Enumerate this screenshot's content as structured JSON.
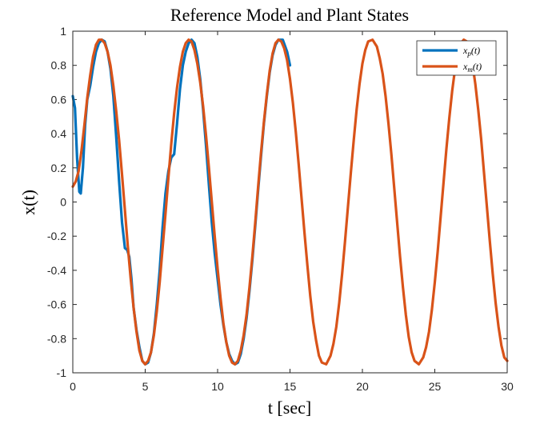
{
  "chart_data": {
    "type": "line",
    "title": "Reference Model and Plant States",
    "xlabel": "t [sec]",
    "ylabel": "x(t)",
    "xlim": [
      0,
      30
    ],
    "ylim": [
      -1,
      1
    ],
    "xticks": [
      0,
      5,
      10,
      15,
      20,
      25,
      30
    ],
    "yticks": [
      -1,
      -0.8,
      -0.6,
      -0.4,
      -0.2,
      0,
      0.2,
      0.4,
      0.6,
      0.8,
      1
    ],
    "xtick_labels": [
      "0",
      "5",
      "10",
      "15",
      "20",
      "25",
      "30"
    ],
    "ytick_labels": [
      "-1",
      "-0.8",
      "-0.6",
      "-0.4",
      "-0.2",
      "0",
      "0.2",
      "0.4",
      "0.6",
      "0.8",
      "1"
    ],
    "grid": false,
    "legend_position": "top-right",
    "series": [
      {
        "name": "x_p(t)",
        "legend_label": "xp(t)",
        "color": "#0072BD",
        "points": [
          [
            0,
            0.62
          ],
          [
            0.15,
            0.55
          ],
          [
            0.3,
            0.25
          ],
          [
            0.45,
            0.06
          ],
          [
            0.55,
            0.05
          ],
          [
            0.7,
            0.2
          ],
          [
            0.85,
            0.45
          ],
          [
            1.0,
            0.6
          ],
          [
            1.2,
            0.68
          ],
          [
            1.4,
            0.79
          ],
          [
            1.6,
            0.88
          ],
          [
            1.8,
            0.93
          ],
          [
            2.0,
            0.95
          ],
          [
            2.2,
            0.94
          ],
          [
            2.4,
            0.88
          ],
          [
            2.6,
            0.78
          ],
          [
            2.8,
            0.62
          ],
          [
            3.0,
            0.38
          ],
          [
            3.2,
            0.12
          ],
          [
            3.4,
            -0.12
          ],
          [
            3.6,
            -0.27
          ],
          [
            3.75,
            -0.28
          ],
          [
            3.9,
            -0.32
          ],
          [
            4.05,
            -0.45
          ],
          [
            4.2,
            -0.62
          ],
          [
            4.4,
            -0.75
          ],
          [
            4.6,
            -0.85
          ],
          [
            4.8,
            -0.93
          ],
          [
            5.0,
            -0.95
          ],
          [
            5.2,
            -0.94
          ],
          [
            5.4,
            -0.88
          ],
          [
            5.6,
            -0.77
          ],
          [
            5.8,
            -0.6
          ],
          [
            6.0,
            -0.4
          ],
          [
            6.2,
            -0.15
          ],
          [
            6.4,
            0.05
          ],
          [
            6.6,
            0.18
          ],
          [
            6.8,
            0.26
          ],
          [
            7.0,
            0.28
          ],
          [
            7.2,
            0.46
          ],
          [
            7.4,
            0.66
          ],
          [
            7.6,
            0.8
          ],
          [
            7.8,
            0.88
          ],
          [
            8.0,
            0.93
          ],
          [
            8.2,
            0.95
          ],
          [
            8.4,
            0.93
          ],
          [
            8.6,
            0.85
          ],
          [
            8.8,
            0.72
          ],
          [
            9.0,
            0.54
          ],
          [
            9.2,
            0.33
          ],
          [
            9.4,
            0.1
          ],
          [
            9.6,
            -0.12
          ],
          [
            9.8,
            -0.3
          ],
          [
            10.0,
            -0.45
          ],
          [
            10.2,
            -0.6
          ],
          [
            10.4,
            -0.72
          ],
          [
            10.6,
            -0.82
          ],
          [
            10.8,
            -0.89
          ],
          [
            11.0,
            -0.93
          ],
          [
            11.2,
            -0.95
          ],
          [
            11.4,
            -0.94
          ],
          [
            11.6,
            -0.89
          ],
          [
            11.8,
            -0.8
          ],
          [
            12.0,
            -0.68
          ],
          [
            12.2,
            -0.52
          ],
          [
            12.4,
            -0.34
          ],
          [
            12.6,
            -0.14
          ],
          [
            12.8,
            0.07
          ],
          [
            13.0,
            0.27
          ],
          [
            13.2,
            0.46
          ],
          [
            13.4,
            0.62
          ],
          [
            13.6,
            0.76
          ],
          [
            13.8,
            0.86
          ],
          [
            14.0,
            0.92
          ],
          [
            14.2,
            0.95
          ],
          [
            14.5,
            0.95
          ],
          [
            14.8,
            0.88
          ],
          [
            15.0,
            0.8
          ]
        ]
      },
      {
        "name": "x_m(t)",
        "legend_label": "xm(t)",
        "color": "#D95319",
        "amplitude": 0.95,
        "period": 6.3,
        "peak_time": 2.0,
        "points": [
          [
            0,
            0.09
          ],
          [
            0.2,
            0.12
          ],
          [
            0.4,
            0.18
          ],
          [
            0.6,
            0.3
          ],
          [
            0.8,
            0.45
          ],
          [
            1.0,
            0.61
          ],
          [
            1.2,
            0.74
          ],
          [
            1.4,
            0.85
          ],
          [
            1.6,
            0.92
          ],
          [
            1.8,
            0.95
          ],
          [
            2.0,
            0.95
          ],
          [
            2.2,
            0.93
          ],
          [
            2.4,
            0.88
          ],
          [
            2.6,
            0.8
          ],
          [
            2.8,
            0.68
          ],
          [
            3.0,
            0.53
          ],
          [
            3.2,
            0.36
          ],
          [
            3.4,
            0.16
          ],
          [
            3.6,
            -0.05
          ],
          [
            3.8,
            -0.26
          ],
          [
            4.0,
            -0.45
          ],
          [
            4.2,
            -0.62
          ],
          [
            4.4,
            -0.76
          ],
          [
            4.6,
            -0.87
          ],
          [
            4.8,
            -0.93
          ],
          [
            5.0,
            -0.95
          ],
          [
            5.2,
            -0.93
          ],
          [
            5.4,
            -0.88
          ],
          [
            5.6,
            -0.78
          ],
          [
            5.8,
            -0.64
          ],
          [
            6.0,
            -0.47
          ],
          [
            6.2,
            -0.27
          ],
          [
            6.4,
            -0.07
          ],
          [
            6.6,
            0.14
          ],
          [
            6.8,
            0.34
          ],
          [
            7.0,
            0.52
          ],
          [
            7.2,
            0.67
          ],
          [
            7.4,
            0.79
          ],
          [
            7.6,
            0.88
          ],
          [
            7.8,
            0.93
          ],
          [
            8.0,
            0.95
          ],
          [
            8.2,
            0.94
          ],
          [
            8.4,
            0.89
          ],
          [
            8.6,
            0.81
          ],
          [
            8.8,
            0.7
          ],
          [
            9.0,
            0.56
          ],
          [
            9.2,
            0.39
          ],
          [
            9.4,
            0.2
          ],
          [
            9.6,
            0.0
          ],
          [
            9.8,
            -0.2
          ],
          [
            10.0,
            -0.39
          ],
          [
            10.2,
            -0.56
          ],
          [
            10.4,
            -0.71
          ],
          [
            10.6,
            -0.82
          ],
          [
            10.8,
            -0.9
          ],
          [
            11.0,
            -0.94
          ],
          [
            11.2,
            -0.95
          ],
          [
            11.4,
            -0.93
          ],
          [
            11.6,
            -0.87
          ],
          [
            11.8,
            -0.78
          ],
          [
            12.0,
            -0.66
          ],
          [
            12.2,
            -0.5
          ],
          [
            12.4,
            -0.32
          ],
          [
            12.6,
            -0.12
          ],
          [
            12.8,
            0.09
          ],
          [
            13.0,
            0.29
          ],
          [
            13.2,
            0.47
          ],
          [
            13.4,
            0.63
          ],
          [
            13.6,
            0.77
          ],
          [
            13.8,
            0.87
          ],
          [
            14.0,
            0.93
          ],
          [
            14.2,
            0.95
          ],
          [
            14.4,
            0.94
          ],
          [
            14.6,
            0.9
          ],
          [
            14.8,
            0.83
          ],
          [
            15.0,
            0.72
          ],
          [
            15.2,
            0.58
          ],
          [
            15.4,
            0.41
          ],
          [
            15.6,
            0.22
          ],
          [
            15.8,
            0.02
          ],
          [
            16.0,
            -0.18
          ],
          [
            16.2,
            -0.37
          ],
          [
            16.4,
            -0.55
          ],
          [
            16.6,
            -0.7
          ],
          [
            16.8,
            -0.81
          ],
          [
            17.0,
            -0.9
          ],
          [
            17.2,
            -0.94
          ],
          [
            17.5,
            -0.95
          ],
          [
            17.8,
            -0.9
          ],
          [
            18.0,
            -0.83
          ],
          [
            18.2,
            -0.73
          ],
          [
            18.4,
            -0.59
          ],
          [
            18.6,
            -0.42
          ],
          [
            18.8,
            -0.23
          ],
          [
            19.0,
            -0.03
          ],
          [
            19.2,
            0.17
          ],
          [
            19.4,
            0.36
          ],
          [
            19.6,
            0.54
          ],
          [
            19.8,
            0.69
          ],
          [
            20.0,
            0.81
          ],
          [
            20.2,
            0.89
          ],
          [
            20.4,
            0.94
          ],
          [
            20.7,
            0.95
          ],
          [
            21.0,
            0.91
          ],
          [
            21.2,
            0.84
          ],
          [
            21.4,
            0.75
          ],
          [
            21.6,
            0.62
          ],
          [
            21.8,
            0.46
          ],
          [
            22.0,
            0.28
          ],
          [
            22.2,
            0.08
          ],
          [
            22.4,
            -0.12
          ],
          [
            22.6,
            -0.32
          ],
          [
            22.8,
            -0.5
          ],
          [
            23.0,
            -0.66
          ],
          [
            23.2,
            -0.79
          ],
          [
            23.4,
            -0.88
          ],
          [
            23.6,
            -0.93
          ],
          [
            23.9,
            -0.95
          ],
          [
            24.2,
            -0.91
          ],
          [
            24.4,
            -0.85
          ],
          [
            24.6,
            -0.76
          ],
          [
            24.8,
            -0.63
          ],
          [
            25.0,
            -0.47
          ],
          [
            25.2,
            -0.29
          ],
          [
            25.4,
            -0.09
          ],
          [
            25.6,
            0.11
          ],
          [
            25.8,
            0.31
          ],
          [
            26.0,
            0.49
          ],
          [
            26.2,
            0.65
          ],
          [
            26.4,
            0.78
          ],
          [
            26.6,
            0.88
          ],
          [
            26.8,
            0.93
          ],
          [
            27.0,
            0.95
          ],
          [
            27.2,
            0.94
          ],
          [
            27.4,
            0.89
          ],
          [
            27.6,
            0.81
          ],
          [
            27.8,
            0.69
          ],
          [
            28.0,
            0.54
          ],
          [
            28.2,
            0.37
          ],
          [
            28.4,
            0.17
          ],
          [
            28.6,
            -0.03
          ],
          [
            28.8,
            -0.23
          ],
          [
            29.0,
            -0.42
          ],
          [
            29.2,
            -0.59
          ],
          [
            29.4,
            -0.73
          ],
          [
            29.6,
            -0.84
          ],
          [
            29.8,
            -0.91
          ],
          [
            30.0,
            -0.93
          ]
        ]
      }
    ]
  }
}
